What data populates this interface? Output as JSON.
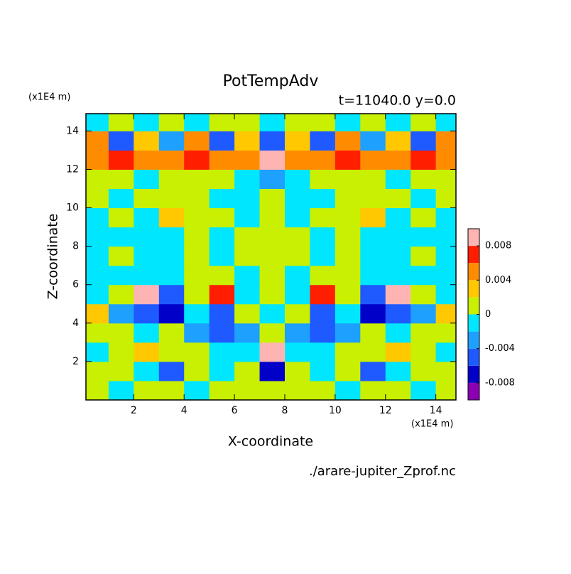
{
  "chart_data": {
    "type": "contour",
    "title": "PotTempAdv",
    "subtitle": "t=11040.0 y=0.0",
    "x_label": "X-coordinate",
    "y_label": "Z-coordinate",
    "x_unit": "(x1E4 m)",
    "y_unit": "(x1E4 m)",
    "source": "./arare-jupiter_Zprof.nc",
    "xlim": [
      0.1,
      14.8
    ],
    "ylim": [
      0,
      14.9
    ],
    "xticks": [
      2,
      4,
      6,
      8,
      10,
      12,
      14
    ],
    "yticks": [
      2,
      4,
      6,
      8,
      10,
      12,
      14
    ],
    "x": [
      0.5,
      1.5,
      2.5,
      3.5,
      4.5,
      5.5,
      6.5,
      7.5,
      8.5,
      9.5,
      10.5,
      11.5,
      12.5,
      13.5,
      14.5
    ],
    "y": [
      0.5,
      1.5,
      2.5,
      3.5,
      4.5,
      5.5,
      6.5,
      7.5,
      8.5,
      9.5,
      10.5,
      11.5,
      12.5,
      13.5,
      14.5
    ],
    "z": [
      [
        0.001,
        -0.001,
        0.001,
        0.001,
        -0.001,
        0.001,
        0.001,
        0.001,
        0.001,
        0.001,
        -0.001,
        0.001,
        0.001,
        -0.001,
        0.001
      ],
      [
        0.001,
        0.001,
        -0.001,
        -0.005,
        0.001,
        -0.001,
        0.001,
        -0.007,
        0.001,
        -0.001,
        0.001,
        -0.005,
        -0.001,
        0.001,
        0.001
      ],
      [
        -0.001,
        0.001,
        0.003,
        0.001,
        0.001,
        -0.001,
        -0.001,
        0.009,
        -0.001,
        -0.001,
        0.001,
        0.001,
        0.003,
        0.001,
        -0.001
      ],
      [
        0.001,
        0.001,
        -0.001,
        0.001,
        -0.003,
        -0.005,
        -0.003,
        0.001,
        -0.003,
        -0.005,
        -0.003,
        0.001,
        -0.001,
        0.001,
        0.001
      ],
      [
        0.003,
        -0.003,
        -0.005,
        -0.007,
        -0.001,
        -0.005,
        0.001,
        -0.001,
        0.001,
        -0.005,
        -0.001,
        -0.007,
        -0.005,
        -0.003,
        0.003
      ],
      [
        -0.001,
        0.001,
        0.009,
        -0.005,
        0.001,
        0.007,
        -0.001,
        0.001,
        -0.001,
        0.007,
        0.001,
        -0.005,
        0.009,
        0.001,
        -0.001
      ],
      [
        -0.001,
        -0.001,
        -0.001,
        -0.001,
        0.001,
        0.001,
        -0.001,
        0.001,
        -0.001,
        0.001,
        0.001,
        -0.001,
        -0.001,
        -0.001,
        -0.001
      ],
      [
        -0.001,
        0.001,
        -0.001,
        -0.001,
        0.001,
        -0.001,
        0.001,
        0.001,
        0.001,
        -0.001,
        0.001,
        -0.001,
        -0.001,
        0.001,
        -0.001
      ],
      [
        -0.001,
        -0.001,
        -0.001,
        -0.001,
        0.001,
        -0.001,
        0.001,
        0.001,
        0.001,
        -0.001,
        0.001,
        -0.001,
        -0.001,
        -0.001,
        -0.001
      ],
      [
        -0.001,
        0.001,
        -0.001,
        0.003,
        0.001,
        0.001,
        -0.001,
        0.001,
        -0.001,
        0.001,
        0.001,
        0.003,
        -0.001,
        0.001,
        -0.001
      ],
      [
        0.001,
        -0.001,
        0.001,
        0.001,
        0.001,
        -0.001,
        -0.001,
        0.001,
        -0.001,
        -0.001,
        0.001,
        0.001,
        0.001,
        -0.001,
        0.001
      ],
      [
        0.001,
        0.001,
        -0.001,
        0.001,
        0.001,
        0.001,
        -0.001,
        -0.003,
        -0.001,
        0.001,
        0.001,
        0.001,
        -0.001,
        0.001,
        0.001
      ],
      [
        0.005,
        0.007,
        0.005,
        0.005,
        0.007,
        0.005,
        0.005,
        0.009,
        0.005,
        0.005,
        0.007,
        0.005,
        0.005,
        0.007,
        0.005
      ],
      [
        0.005,
        -0.005,
        0.003,
        -0.003,
        0.005,
        -0.005,
        0.003,
        -0.005,
        0.003,
        -0.005,
        0.005,
        -0.003,
        0.003,
        -0.005,
        0.005
      ],
      [
        -0.001,
        0.001,
        -0.001,
        0.001,
        -0.001,
        0.001,
        0.001,
        -0.001,
        0.001,
        0.001,
        -0.001,
        0.001,
        -0.001,
        0.001,
        -0.001
      ]
    ],
    "levels": [
      -0.01,
      -0.008,
      -0.006,
      -0.004,
      -0.002,
      0,
      0.002,
      0.004,
      0.006,
      0.008,
      0.01
    ],
    "colors": [
      "#8c00b4",
      "#0000c8",
      "#1e5aff",
      "#1ea0ff",
      "#00e6ff",
      "#c8f000",
      "#ffc800",
      "#ff8c00",
      "#ff1e00",
      "#ffb4b4"
    ],
    "colorbar_ticks": [
      0.008,
      0.004,
      0,
      -0.004,
      -0.008
    ]
  }
}
